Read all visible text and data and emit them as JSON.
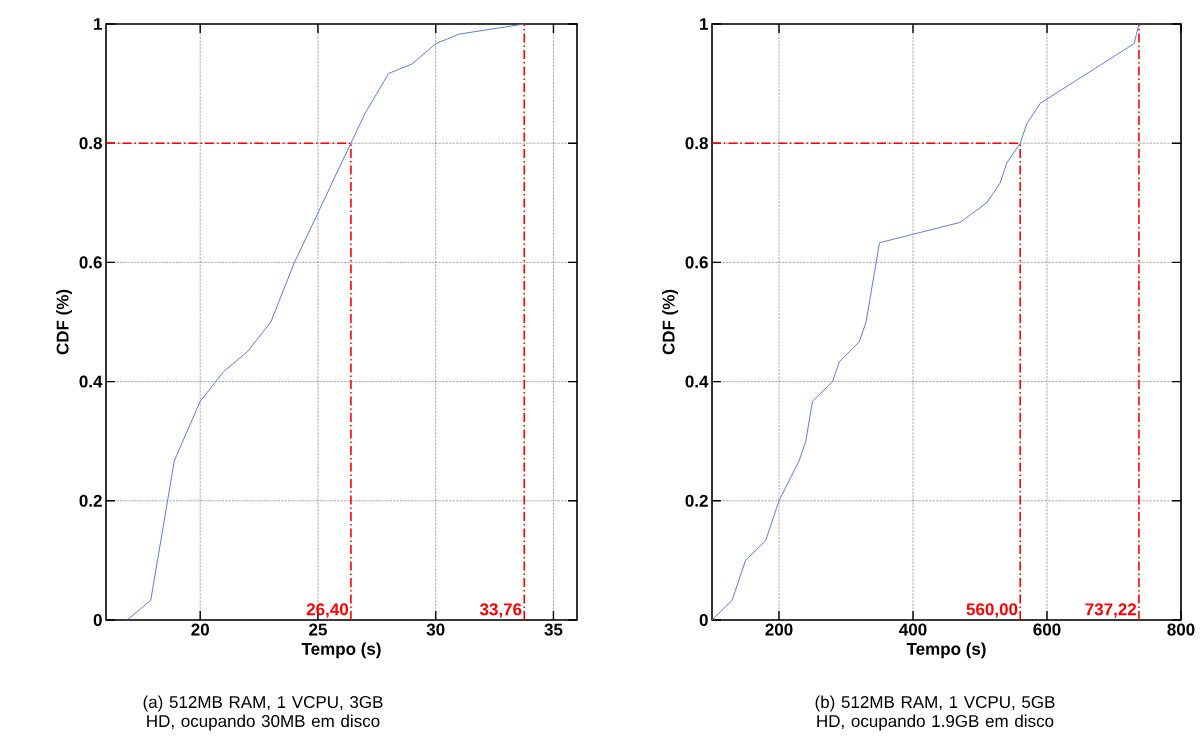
{
  "chart_data": [
    {
      "type": "line",
      "xlabel": "Tempo (s)",
      "ylabel": "CDF (%)",
      "xlim": [
        16,
        36
      ],
      "ylim": [
        0,
        1
      ],
      "xticks": [
        20,
        25,
        30,
        35
      ],
      "yticks": [
        0,
        0.2,
        0.4,
        0.6,
        0.8,
        1
      ],
      "grid": true,
      "series": [
        {
          "color": "#4a6fe3",
          "x": [
            16.9,
            17.9,
            18.9,
            20,
            21,
            22,
            23,
            24,
            25,
            26,
            26.4,
            27,
            28,
            29,
            30,
            31,
            33.76
          ],
          "values": [
            0,
            0.033,
            0.267,
            0.367,
            0.417,
            0.45,
            0.5,
            0.6,
            0.683,
            0.767,
            0.8,
            0.85,
            0.917,
            0.933,
            0.967,
            0.983,
            1
          ]
        }
      ],
      "ref_lines": [
        {
          "axis": "y",
          "value": 0.8,
          "color": "#ff0000"
        },
        {
          "axis": "x",
          "value": 26.4,
          "label": "26,40",
          "color": "#ff0000"
        },
        {
          "axis": "x",
          "value": 33.76,
          "label": "33,76",
          "color": "#ff0000"
        }
      ],
      "annotations": [
        "(a) 512MB RAM, 1 VCPU, 3GB HD, ocupando 30MB em disco"
      ]
    },
    {
      "type": "line",
      "xlabel": "Tempo (s)",
      "ylabel": "CDF (%)",
      "xlim": [
        100,
        800
      ],
      "ylim": [
        0,
        1
      ],
      "xticks": [
        200,
        400,
        600,
        800
      ],
      "yticks": [
        0,
        0.2,
        0.4,
        0.6,
        0.8,
        1
      ],
      "grid": true,
      "series": [
        {
          "color": "#4a6fe3",
          "x": [
            100,
            130,
            150,
            180,
            200,
            230,
            240,
            250,
            280,
            290,
            320,
            330,
            340,
            350,
            470,
            510,
            530,
            540,
            560,
            570,
            590,
            730,
            737.22
          ],
          "values": [
            0,
            0.033,
            0.1,
            0.133,
            0.2,
            0.267,
            0.3,
            0.367,
            0.4,
            0.433,
            0.467,
            0.5,
            0.567,
            0.633,
            0.667,
            0.7,
            0.733,
            0.767,
            0.8,
            0.833,
            0.867,
            0.967,
            1
          ]
        }
      ],
      "ref_lines": [
        {
          "axis": "y",
          "value": 0.8,
          "color": "#ff0000"
        },
        {
          "axis": "x",
          "value": 560,
          "label": "560,00",
          "color": "#ff0000"
        },
        {
          "axis": "x",
          "value": 737.22,
          "label": "737,22",
          "color": "#ff0000"
        }
      ],
      "annotations": [
        "(b) 512MB RAM, 1 VCPU, 5GB HD, ocupando 1.9GB em disco"
      ]
    }
  ]
}
